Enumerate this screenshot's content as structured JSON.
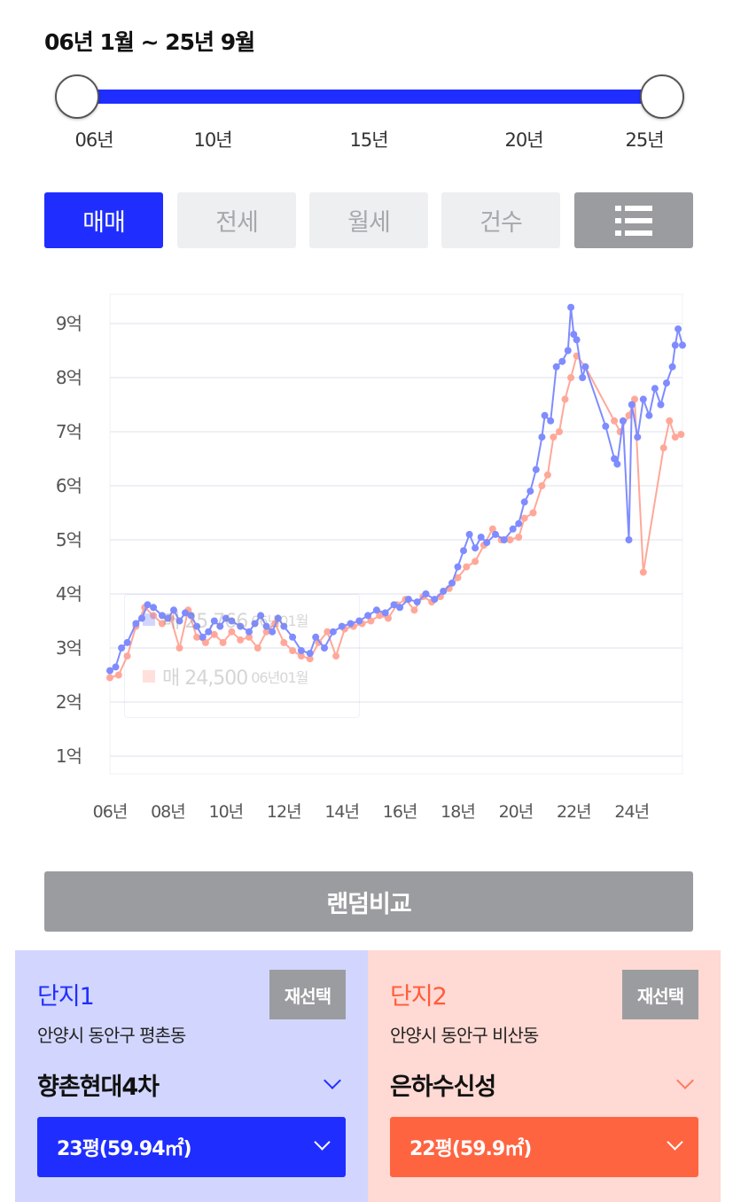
{
  "period": {
    "title": "06년 1월 ~ 25년 9월",
    "ticks": [
      "06년",
      "10년",
      "15년",
      "20년",
      "25년"
    ]
  },
  "tabs": [
    {
      "label": "매매",
      "active": true
    },
    {
      "label": "전세",
      "active": false
    },
    {
      "label": "월세",
      "active": false
    },
    {
      "label": "건수",
      "active": false
    }
  ],
  "list_icon": "list-icon",
  "tooltip": {
    "row1": {
      "label": "매 25,766",
      "date": "06년01월"
    },
    "row2": {
      "label": "매 24,500",
      "date": "06년01월"
    }
  },
  "chart_data": {
    "type": "line",
    "y_ticks": [
      "9억",
      "8억",
      "7억",
      "6억",
      "5억",
      "4억",
      "3억",
      "2억",
      "1억"
    ],
    "x_ticks": [
      "06년",
      "08년",
      "10년",
      "12년",
      "14년",
      "16년",
      "18년",
      "20년",
      "22년",
      "24년"
    ],
    "ylim": [
      1,
      9.5
    ],
    "xlim": [
      2006.0,
      2025.75
    ],
    "grid": true,
    "series": [
      {
        "color": "#7f8cff",
        "points": [
          [
            2006.0,
            2.58
          ],
          [
            2006.2,
            2.65
          ],
          [
            2006.4,
            3.0
          ],
          [
            2006.6,
            3.1
          ],
          [
            2006.9,
            3.45
          ],
          [
            2007.1,
            3.55
          ],
          [
            2007.3,
            3.8
          ],
          [
            2007.5,
            3.75
          ],
          [
            2007.8,
            3.6
          ],
          [
            2008.0,
            3.55
          ],
          [
            2008.2,
            3.7
          ],
          [
            2008.4,
            3.5
          ],
          [
            2008.6,
            3.65
          ],
          [
            2008.8,
            3.6
          ],
          [
            2009.0,
            3.4
          ],
          [
            2009.2,
            3.2
          ],
          [
            2009.4,
            3.3
          ],
          [
            2009.6,
            3.5
          ],
          [
            2009.8,
            3.4
          ],
          [
            2010.0,
            3.55
          ],
          [
            2010.2,
            3.5
          ],
          [
            2010.5,
            3.4
          ],
          [
            2010.8,
            3.3
          ],
          [
            2011.0,
            3.45
          ],
          [
            2011.2,
            3.6
          ],
          [
            2011.4,
            3.4
          ],
          [
            2011.6,
            3.3
          ],
          [
            2011.8,
            3.55
          ],
          [
            2012.0,
            3.4
          ],
          [
            2012.3,
            3.2
          ],
          [
            2012.6,
            2.95
          ],
          [
            2012.9,
            2.9
          ],
          [
            2013.1,
            3.2
          ],
          [
            2013.4,
            3.0
          ],
          [
            2013.7,
            3.3
          ],
          [
            2014.0,
            3.4
          ],
          [
            2014.3,
            3.45
          ],
          [
            2014.6,
            3.5
          ],
          [
            2014.9,
            3.6
          ],
          [
            2015.2,
            3.7
          ],
          [
            2015.5,
            3.65
          ],
          [
            2015.8,
            3.8
          ],
          [
            2016.0,
            3.75
          ],
          [
            2016.3,
            3.9
          ],
          [
            2016.6,
            3.85
          ],
          [
            2016.9,
            4.0
          ],
          [
            2017.2,
            3.9
          ],
          [
            2017.5,
            4.05
          ],
          [
            2017.8,
            4.2
          ],
          [
            2018.0,
            4.5
          ],
          [
            2018.2,
            4.8
          ],
          [
            2018.4,
            5.1
          ],
          [
            2018.6,
            4.85
          ],
          [
            2018.8,
            5.05
          ],
          [
            2019.0,
            4.95
          ],
          [
            2019.3,
            5.1
          ],
          [
            2019.6,
            5.0
          ],
          [
            2019.9,
            5.2
          ],
          [
            2020.1,
            5.3
          ],
          [
            2020.3,
            5.7
          ],
          [
            2020.5,
            5.9
          ],
          [
            2020.7,
            6.3
          ],
          [
            2020.9,
            6.9
          ],
          [
            2021.0,
            7.3
          ],
          [
            2021.2,
            7.2
          ],
          [
            2021.4,
            8.2
          ],
          [
            2021.6,
            8.3
          ],
          [
            2021.8,
            8.5
          ],
          [
            2021.9,
            9.3
          ],
          [
            2022.0,
            8.8
          ],
          [
            2022.1,
            8.7
          ],
          [
            2022.3,
            8.0
          ],
          [
            2022.4,
            8.2
          ],
          [
            2023.1,
            7.1
          ],
          [
            2023.4,
            6.5
          ],
          [
            2023.5,
            6.4
          ],
          [
            2023.7,
            7.2
          ],
          [
            2023.9,
            5.0
          ],
          [
            2024.0,
            7.5
          ],
          [
            2024.2,
            6.9
          ],
          [
            2024.4,
            7.6
          ],
          [
            2024.6,
            7.3
          ],
          [
            2024.8,
            7.8
          ],
          [
            2025.0,
            7.5
          ],
          [
            2025.2,
            7.9
          ],
          [
            2025.4,
            8.2
          ],
          [
            2025.5,
            8.6
          ],
          [
            2025.6,
            8.9
          ],
          [
            2025.75,
            8.6
          ]
        ]
      },
      {
        "color": "#ffa899",
        "points": [
          [
            2006.0,
            2.45
          ],
          [
            2006.3,
            2.5
          ],
          [
            2006.6,
            2.85
          ],
          [
            2006.9,
            3.4
          ],
          [
            2007.2,
            3.75
          ],
          [
            2007.5,
            3.6
          ],
          [
            2007.8,
            3.45
          ],
          [
            2008.1,
            3.55
          ],
          [
            2008.4,
            3.0
          ],
          [
            2008.7,
            3.7
          ],
          [
            2009.0,
            3.2
          ],
          [
            2009.3,
            3.1
          ],
          [
            2009.6,
            3.25
          ],
          [
            2009.9,
            3.1
          ],
          [
            2010.2,
            3.3
          ],
          [
            2010.5,
            3.15
          ],
          [
            2010.8,
            3.2
          ],
          [
            2011.1,
            3.0
          ],
          [
            2011.4,
            3.3
          ],
          [
            2011.7,
            3.45
          ],
          [
            2012.0,
            3.1
          ],
          [
            2012.3,
            2.95
          ],
          [
            2012.6,
            2.85
          ],
          [
            2012.9,
            2.8
          ],
          [
            2013.2,
            3.1
          ],
          [
            2013.5,
            3.3
          ],
          [
            2013.8,
            2.85
          ],
          [
            2014.1,
            3.35
          ],
          [
            2014.4,
            3.4
          ],
          [
            2014.7,
            3.45
          ],
          [
            2015.0,
            3.5
          ],
          [
            2015.3,
            3.6
          ],
          [
            2015.6,
            3.55
          ],
          [
            2015.9,
            3.8
          ],
          [
            2016.2,
            3.9
          ],
          [
            2016.5,
            3.7
          ],
          [
            2016.8,
            3.95
          ],
          [
            2017.1,
            3.85
          ],
          [
            2017.4,
            3.95
          ],
          [
            2017.7,
            4.1
          ],
          [
            2018.0,
            4.3
          ],
          [
            2018.3,
            4.5
          ],
          [
            2018.6,
            4.6
          ],
          [
            2018.9,
            4.9
          ],
          [
            2019.2,
            5.2
          ],
          [
            2019.5,
            5.0
          ],
          [
            2019.8,
            5.0
          ],
          [
            2020.1,
            5.05
          ],
          [
            2020.3,
            5.4
          ],
          [
            2020.6,
            5.5
          ],
          [
            2020.9,
            6.0
          ],
          [
            2021.1,
            6.2
          ],
          [
            2021.3,
            6.9
          ],
          [
            2021.5,
            7.0
          ],
          [
            2021.7,
            7.6
          ],
          [
            2021.9,
            8.0
          ],
          [
            2022.1,
            8.4
          ],
          [
            2022.4,
            8.2
          ],
          [
            2023.4,
            7.2
          ],
          [
            2023.6,
            7.0
          ],
          [
            2023.9,
            7.3
          ],
          [
            2024.1,
            7.6
          ],
          [
            2024.4,
            4.4
          ],
          [
            2025.1,
            6.7
          ],
          [
            2025.3,
            7.2
          ],
          [
            2025.5,
            6.9
          ],
          [
            2025.7,
            6.95
          ]
        ]
      }
    ]
  },
  "random_compare": {
    "label": "랜덤비교"
  },
  "complex1": {
    "title": "단지1",
    "reselect": "재선택",
    "location": "안양시 동안구 평촌동",
    "name": "향촌현대4차",
    "size": "23평(59.94㎡)",
    "color": "#1f2eff"
  },
  "complex2": {
    "title": "단지2",
    "reselect": "재선택",
    "location": "안양시 동안구 비산동",
    "name": "은하수신성",
    "size": "22평(59.9㎡)",
    "color": "#ff6440"
  }
}
